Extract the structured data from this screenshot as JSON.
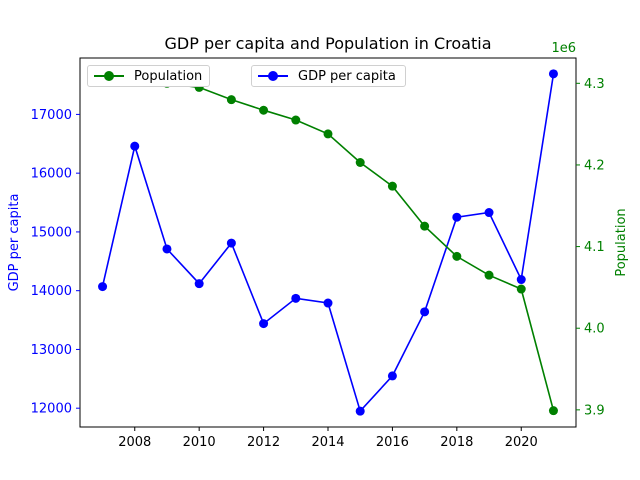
{
  "chart_data": {
    "type": "line",
    "title": "GDP per capita and Population in Croatia",
    "x": [
      2007,
      2008,
      2009,
      2010,
      2011,
      2012,
      2013,
      2014,
      2015,
      2016,
      2017,
      2018,
      2019,
      2020,
      2021
    ],
    "xticks": [
      2008,
      2010,
      2012,
      2014,
      2016,
      2018,
      2020
    ],
    "xlim": [
      2006.3,
      2021.7
    ],
    "left_axis": {
      "label": "GDP per capita",
      "ylim": [
        11680,
        17960
      ],
      "ticks": [
        12000,
        13000,
        14000,
        15000,
        16000,
        17000
      ],
      "color": "#0000ff"
    },
    "right_axis": {
      "label": "Population",
      "multiplier_label": "1e6",
      "ylim": [
        3.879,
        4.331
      ],
      "ticks": [
        3.9,
        4.0,
        4.1,
        4.2,
        4.3
      ],
      "color": "#008000"
    },
    "series": [
      {
        "name": "GDP per capita",
        "axis": "left",
        "color": "#0000ff",
        "values": [
          14070,
          16460,
          14710,
          14120,
          14810,
          13440,
          13870,
          13790,
          11950,
          12550,
          13640,
          15250,
          15330,
          14190,
          17690
        ]
      },
      {
        "name": "Population",
        "axis": "right",
        "color": "#008000",
        "values": [
          4.31,
          4.31,
          4.3,
          4.295,
          4.28,
          4.267,
          4.255,
          4.238,
          4.203,
          4.174,
          4.125,
          4.088,
          4.065,
          4.048,
          3.899
        ]
      }
    ],
    "grid": false,
    "legends": [
      {
        "series": "Population",
        "placement": "top-left"
      },
      {
        "series": "GDP per capita",
        "placement": "upper-center"
      }
    ]
  }
}
